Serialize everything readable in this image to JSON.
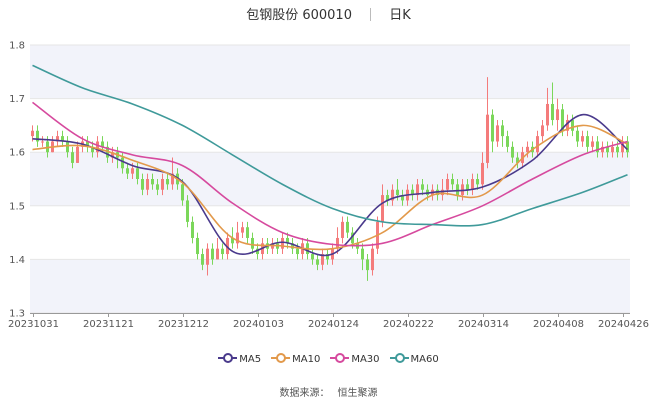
{
  "title": {
    "name": "包钢股份",
    "code": "600010",
    "period": "日K"
  },
  "source": {
    "label": "数据来源：",
    "value": "恒生聚源"
  },
  "colors": {
    "up": "#f47b7b",
    "down": "#7bd75a",
    "ma5": "#4a3a8c",
    "ma10": "#e2994b",
    "ma30": "#d64a9e",
    "ma60": "#3f9a9a",
    "band": "#f2f3fa"
  },
  "chart_data": {
    "type": "candlestick",
    "ylim": [
      1.3,
      1.8
    ],
    "yticks": [
      "1.3",
      "1.4",
      "1.5",
      "1.6",
      "1.7",
      "1.8"
    ],
    "xticks": [
      {
        "label": "20231031",
        "i": 0
      },
      {
        "label": "20231121",
        "i": 15
      },
      {
        "label": "20231212",
        "i": 30
      },
      {
        "label": "20240103",
        "i": 45
      },
      {
        "label": "20240124",
        "i": 60
      },
      {
        "label": "20240222",
        "i": 75
      },
      {
        "label": "20240314",
        "i": 90
      },
      {
        "label": "20240408",
        "i": 105
      },
      {
        "label": "20240426",
        "i": 118
      }
    ],
    "bars": [
      [
        1.63,
        1.64,
        1.65,
        1.62
      ],
      [
        1.64,
        1.62,
        1.65,
        1.61
      ],
      [
        1.62,
        1.62,
        1.63,
        1.61
      ],
      [
        1.62,
        1.6,
        1.63,
        1.59
      ],
      [
        1.6,
        1.62,
        1.63,
        1.6
      ],
      [
        1.62,
        1.63,
        1.64,
        1.61
      ],
      [
        1.63,
        1.62,
        1.64,
        1.61
      ],
      [
        1.62,
        1.6,
        1.63,
        1.59
      ],
      [
        1.6,
        1.58,
        1.61,
        1.57
      ],
      [
        1.58,
        1.61,
        1.62,
        1.58
      ],
      [
        1.61,
        1.62,
        1.63,
        1.6
      ],
      [
        1.62,
        1.61,
        1.63,
        1.6
      ],
      [
        1.61,
        1.6,
        1.62,
        1.59
      ],
      [
        1.6,
        1.62,
        1.63,
        1.59
      ],
      [
        1.62,
        1.61,
        1.63,
        1.6
      ],
      [
        1.61,
        1.59,
        1.62,
        1.58
      ],
      [
        1.59,
        1.6,
        1.61,
        1.58
      ],
      [
        1.6,
        1.59,
        1.61,
        1.57
      ],
      [
        1.59,
        1.57,
        1.6,
        1.56
      ],
      [
        1.57,
        1.56,
        1.58,
        1.55
      ],
      [
        1.56,
        1.57,
        1.58,
        1.55
      ],
      [
        1.57,
        1.55,
        1.58,
        1.54
      ],
      [
        1.55,
        1.53,
        1.56,
        1.52
      ],
      [
        1.53,
        1.55,
        1.56,
        1.52
      ],
      [
        1.55,
        1.54,
        1.56,
        1.53
      ],
      [
        1.54,
        1.53,
        1.55,
        1.52
      ],
      [
        1.53,
        1.55,
        1.56,
        1.52
      ],
      [
        1.55,
        1.54,
        1.56,
        1.53
      ],
      [
        1.54,
        1.56,
        1.59,
        1.53
      ],
      [
        1.56,
        1.54,
        1.57,
        1.53
      ],
      [
        1.54,
        1.51,
        1.55,
        1.5
      ],
      [
        1.51,
        1.47,
        1.52,
        1.46
      ],
      [
        1.47,
        1.44,
        1.48,
        1.43
      ],
      [
        1.44,
        1.41,
        1.45,
        1.4
      ],
      [
        1.41,
        1.39,
        1.42,
        1.38
      ],
      [
        1.39,
        1.42,
        1.43,
        1.37
      ],
      [
        1.42,
        1.4,
        1.43,
        1.39
      ],
      [
        1.4,
        1.42,
        1.44,
        1.4
      ],
      [
        1.42,
        1.41,
        1.43,
        1.4
      ],
      [
        1.41,
        1.44,
        1.45,
        1.4
      ],
      [
        1.44,
        1.43,
        1.46,
        1.42
      ],
      [
        1.43,
        1.45,
        1.47,
        1.42
      ],
      [
        1.45,
        1.46,
        1.47,
        1.44
      ],
      [
        1.46,
        1.44,
        1.47,
        1.43
      ],
      [
        1.44,
        1.42,
        1.45,
        1.41
      ],
      [
        1.42,
        1.41,
        1.43,
        1.4
      ],
      [
        1.41,
        1.43,
        1.44,
        1.4
      ],
      [
        1.43,
        1.42,
        1.44,
        1.41
      ],
      [
        1.42,
        1.43,
        1.44,
        1.41
      ],
      [
        1.43,
        1.42,
        1.44,
        1.41
      ],
      [
        1.42,
        1.44,
        1.45,
        1.41
      ],
      [
        1.44,
        1.43,
        1.45,
        1.42
      ],
      [
        1.43,
        1.42,
        1.44,
        1.41
      ],
      [
        1.42,
        1.41,
        1.43,
        1.4
      ],
      [
        1.41,
        1.43,
        1.44,
        1.4
      ],
      [
        1.43,
        1.41,
        1.44,
        1.4
      ],
      [
        1.41,
        1.4,
        1.42,
        1.39
      ],
      [
        1.4,
        1.39,
        1.41,
        1.38
      ],
      [
        1.39,
        1.41,
        1.42,
        1.38
      ],
      [
        1.41,
        1.4,
        1.42,
        1.39
      ],
      [
        1.4,
        1.42,
        1.43,
        1.39
      ],
      [
        1.42,
        1.44,
        1.46,
        1.41
      ],
      [
        1.44,
        1.47,
        1.48,
        1.43
      ],
      [
        1.47,
        1.45,
        1.48,
        1.44
      ],
      [
        1.45,
        1.43,
        1.46,
        1.42
      ],
      [
        1.43,
        1.42,
        1.44,
        1.41
      ],
      [
        1.42,
        1.4,
        1.43,
        1.38
      ],
      [
        1.4,
        1.38,
        1.41,
        1.36
      ],
      [
        1.38,
        1.42,
        1.43,
        1.37
      ],
      [
        1.42,
        1.47,
        1.48,
        1.41
      ],
      [
        1.47,
        1.52,
        1.54,
        1.46
      ],
      [
        1.52,
        1.51,
        1.53,
        1.5
      ],
      [
        1.51,
        1.53,
        1.54,
        1.5
      ],
      [
        1.53,
        1.52,
        1.55,
        1.51
      ],
      [
        1.52,
        1.51,
        1.53,
        1.5
      ],
      [
        1.51,
        1.53,
        1.54,
        1.5
      ],
      [
        1.53,
        1.52,
        1.54,
        1.51
      ],
      [
        1.52,
        1.54,
        1.55,
        1.51
      ],
      [
        1.54,
        1.53,
        1.55,
        1.52
      ],
      [
        1.53,
        1.52,
        1.54,
        1.51
      ],
      [
        1.52,
        1.53,
        1.54,
        1.51
      ],
      [
        1.53,
        1.52,
        1.54,
        1.51
      ],
      [
        1.52,
        1.53,
        1.55,
        1.51
      ],
      [
        1.53,
        1.55,
        1.56,
        1.52
      ],
      [
        1.55,
        1.54,
        1.56,
        1.53
      ],
      [
        1.54,
        1.52,
        1.55,
        1.51
      ],
      [
        1.52,
        1.54,
        1.55,
        1.51
      ],
      [
        1.54,
        1.53,
        1.55,
        1.52
      ],
      [
        1.53,
        1.55,
        1.56,
        1.52
      ],
      [
        1.55,
        1.54,
        1.56,
        1.53
      ],
      [
        1.54,
        1.58,
        1.6,
        1.53
      ],
      [
        1.58,
        1.67,
        1.74,
        1.57
      ],
      [
        1.67,
        1.62,
        1.68,
        1.6
      ],
      [
        1.62,
        1.65,
        1.66,
        1.61
      ],
      [
        1.65,
        1.63,
        1.66,
        1.61
      ],
      [
        1.63,
        1.61,
        1.64,
        1.6
      ],
      [
        1.61,
        1.59,
        1.62,
        1.58
      ],
      [
        1.59,
        1.58,
        1.6,
        1.57
      ],
      [
        1.58,
        1.6,
        1.61,
        1.57
      ],
      [
        1.6,
        1.61,
        1.62,
        1.59
      ],
      [
        1.61,
        1.6,
        1.62,
        1.59
      ],
      [
        1.6,
        1.63,
        1.64,
        1.59
      ],
      [
        1.63,
        1.65,
        1.66,
        1.62
      ],
      [
        1.65,
        1.69,
        1.72,
        1.64
      ],
      [
        1.69,
        1.66,
        1.73,
        1.65
      ],
      [
        1.66,
        1.68,
        1.7,
        1.64
      ],
      [
        1.68,
        1.64,
        1.69,
        1.63
      ],
      [
        1.64,
        1.66,
        1.67,
        1.63
      ],
      [
        1.66,
        1.64,
        1.67,
        1.63
      ],
      [
        1.64,
        1.62,
        1.65,
        1.61
      ],
      [
        1.62,
        1.63,
        1.64,
        1.61
      ],
      [
        1.63,
        1.61,
        1.64,
        1.6
      ],
      [
        1.61,
        1.62,
        1.63,
        1.6
      ],
      [
        1.62,
        1.6,
        1.63,
        1.59
      ],
      [
        1.6,
        1.61,
        1.62,
        1.59
      ],
      [
        1.61,
        1.6,
        1.62,
        1.59
      ],
      [
        1.6,
        1.61,
        1.62,
        1.59
      ],
      [
        1.61,
        1.6,
        1.62,
        1.59
      ],
      [
        1.6,
        1.62,
        1.63,
        1.59
      ],
      [
        1.62,
        1.6,
        1.63,
        1.59
      ]
    ],
    "ma_anchor_index": [
      0,
      10,
      20,
      30,
      40,
      50,
      60,
      70,
      80,
      90,
      100,
      110,
      119
    ],
    "series": [
      {
        "name": "MA5",
        "color": "#4a3a8c",
        "values": [
          1.625,
          1.615,
          1.575,
          1.545,
          1.415,
          1.432,
          1.41,
          1.505,
          1.525,
          1.535,
          1.585,
          1.67,
          1.605
        ]
      },
      {
        "name": "MA10",
        "color": "#e2994b",
        "values": [
          1.605,
          1.612,
          1.585,
          1.543,
          1.44,
          1.425,
          1.42,
          1.45,
          1.52,
          1.52,
          1.605,
          1.65,
          1.615
        ]
      },
      {
        "name": "MA30",
        "color": "#d64a9e",
        "values": [
          1.693,
          1.625,
          1.595,
          1.575,
          1.505,
          1.45,
          1.428,
          1.43,
          1.465,
          1.5,
          1.55,
          1.595,
          1.62
        ]
      },
      {
        "name": "MA60",
        "color": "#3f9a9a",
        "values": [
          1.762,
          1.72,
          1.69,
          1.65,
          1.595,
          1.54,
          1.495,
          1.47,
          1.465,
          1.465,
          1.495,
          1.525,
          1.558
        ]
      }
    ],
    "legend": [
      "MA5",
      "MA10",
      "MA30",
      "MA60"
    ]
  }
}
